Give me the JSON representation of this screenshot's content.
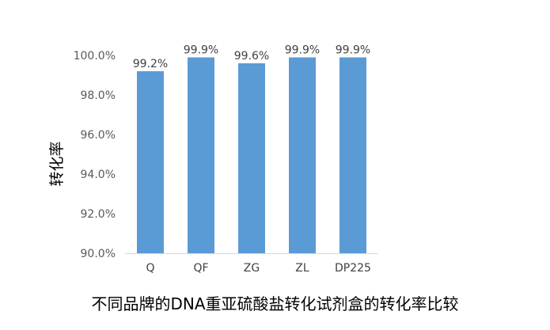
{
  "caption": "不同品牌的DNA重亚硫酸盐转化试剂盒的转化率比较",
  "chart_data": {
    "type": "bar",
    "title": "",
    "xlabel": "",
    "ylabel": "转化率",
    "categories": [
      "Q",
      "QF",
      "ZG",
      "ZL",
      "DP225"
    ],
    "values": [
      99.2,
      99.9,
      99.6,
      99.9,
      99.9
    ],
    "data_labels": [
      "99.2%",
      "99.9%",
      "99.6%",
      "99.9%",
      "99.9%"
    ],
    "ylim": [
      90,
      100
    ],
    "yticks": [
      90,
      92,
      94,
      96,
      98,
      100
    ],
    "ytick_labels": [
      "90.0%",
      "92.0%",
      "94.0%",
      "96.0%",
      "98.0%",
      "100.0%"
    ],
    "bar_color": "#5b9bd5",
    "grid": false,
    "legend": "none"
  }
}
